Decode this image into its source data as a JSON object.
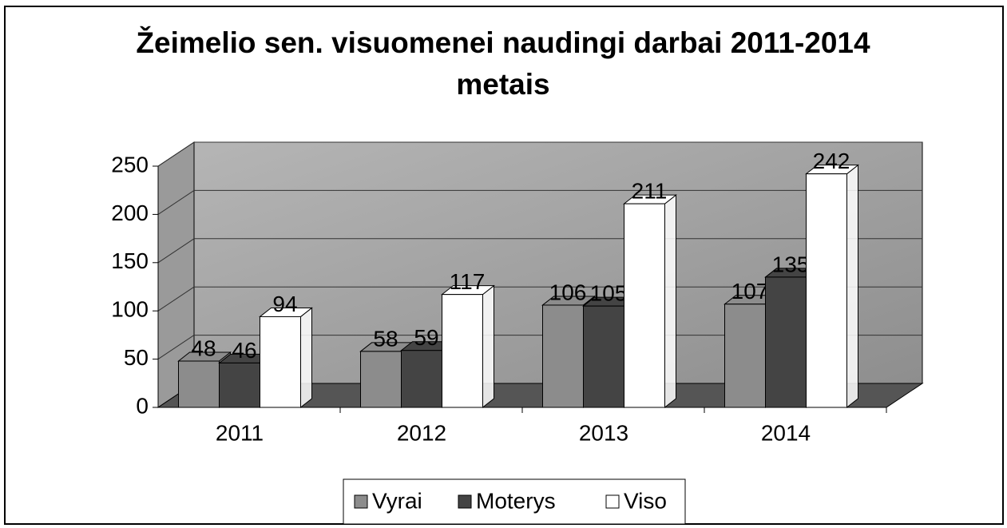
{
  "chart_data": {
    "type": "bar3d",
    "title": "Žeimelio sen. visuomenei naudingi darbai 2011-2014 metais",
    "categories": [
      "2011",
      "2012",
      "2013",
      "2014"
    ],
    "series": [
      {
        "name": "Vyrai",
        "color": "#8c8c8c",
        "values": [
          48,
          58,
          106,
          107
        ]
      },
      {
        "name": "Moterys",
        "color": "#444444",
        "values": [
          46,
          59,
          105,
          135
        ]
      },
      {
        "name": "Viso",
        "color": "#ffffff",
        "values": [
          94,
          117,
          211,
          242
        ]
      }
    ],
    "ylim": [
      0,
      250
    ],
    "yticks": [
      0,
      50,
      100,
      150,
      200,
      250
    ],
    "grid": true,
    "legend": "bottom"
  }
}
